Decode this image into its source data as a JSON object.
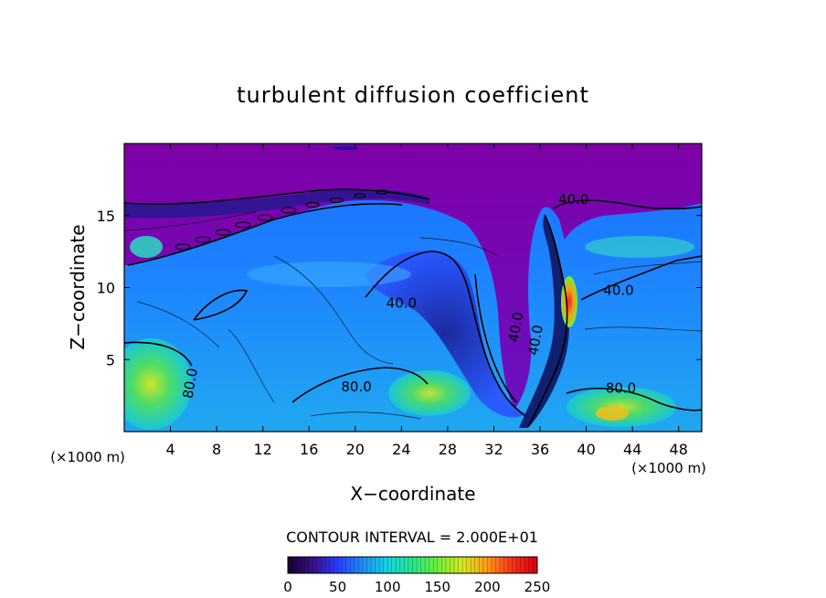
{
  "chart_data": {
    "type": "heatmap",
    "title": "turbulent diffusion coefficient",
    "xlabel": "X−coordinate",
    "ylabel": "Z−coordinate",
    "x_unit_left": "(×1000 m)",
    "x_unit_right": "(×1000 m)",
    "xlim": [
      0,
      50
    ],
    "ylim": [
      0,
      20
    ],
    "x_ticks": [
      4,
      8,
      12,
      16,
      20,
      24,
      28,
      32,
      36,
      40,
      44,
      48
    ],
    "y_ticks": [
      5,
      10,
      15
    ],
    "contour_interval_text": "CONTOUR INTERVAL = 2.000E+01",
    "contour_labels": [
      {
        "text": "40.0",
        "x": 38.9,
        "y": 15.8
      },
      {
        "text": "40.0",
        "x": 24.0,
        "y": 8.6
      },
      {
        "text": "40.0",
        "x": 42.8,
        "y": 9.5
      },
      {
        "text": "40.0",
        "x": 34.3,
        "y": 7.2
      },
      {
        "text": "40.0",
        "x": 36.0,
        "y": 6.3
      },
      {
        "text": "80.0",
        "x": 6.1,
        "y": 3.3
      },
      {
        "text": "80.0",
        "x": 20.1,
        "y": 2.8
      },
      {
        "text": "80.0",
        "x": 43.0,
        "y": 2.7
      }
    ],
    "colorbar": {
      "range": [
        0,
        250
      ],
      "ticks": [
        0,
        50,
        100,
        150,
        200,
        250
      ],
      "colors": [
        "#1a0030",
        "#3a0f8a",
        "#2a3cff",
        "#1a90ff",
        "#16d4e0",
        "#24e88a",
        "#6ef03a",
        "#d8e820",
        "#ff9a18",
        "#ff3018",
        "#d60010"
      ]
    },
    "background_color": "#7e00a8"
  }
}
